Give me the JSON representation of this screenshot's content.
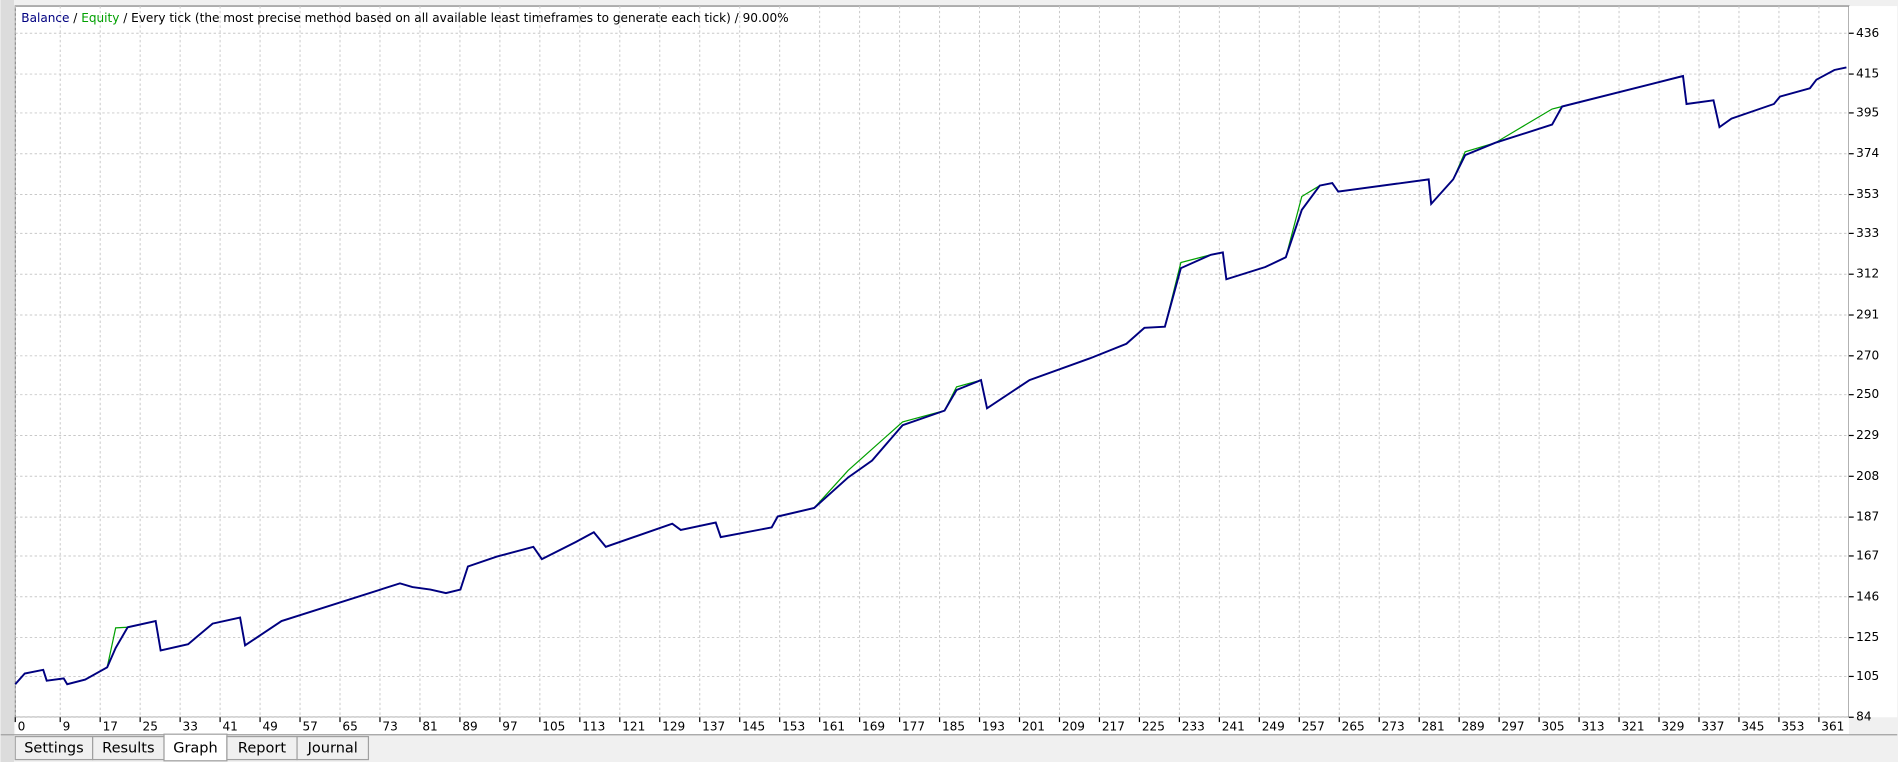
{
  "chart_data": {
    "type": "line",
    "separator": " / ",
    "subtitle": "Every tick (the most precise method based on all available least timeframes to generate each tick) / 90.00%",
    "x": [
      0,
      1.9,
      5.6,
      6.3,
      9.7,
      10.4,
      14,
      18.4,
      20.1,
      22.5,
      28.1,
      29.1,
      34.6,
      39.5,
      45,
      46,
      53.3,
      77,
      79.5,
      83.1,
      86.2,
      89.1,
      90.6,
      96.4,
      103.7,
      105.4,
      112.2,
      115.8,
      118.2,
      131.5,
      133.2,
      140.2,
      141.2,
      151.4,
      152.6,
      159.9,
      166.7,
      171.5,
      177.6,
      186,
      188.4,
      193.3,
      194.5,
      203,
      215.1,
      222.4,
      226,
      230.1,
      233.3,
      239.3,
      241.7,
      242.4,
      250.2,
      254.3,
      257.5,
      261.1,
      263.6,
      264.8,
      282.9,
      283.4,
      287.8,
      290.2,
      296.2,
      307.6,
      309.6,
      333.8,
      334.5,
      339.9,
      341.1,
      343.5,
      352,
      353.2,
      359.2,
      360.5,
      364.1,
      366.5
    ],
    "series": [
      {
        "name": "Equity",
        "color": "#00a000",
        "values": [
          101,
          106.5,
          108.4,
          102.8,
          104,
          101,
          103.4,
          109.7,
          130,
          130.3,
          133.5,
          118.4,
          121.6,
          132.2,
          135.3,
          121,
          133.5,
          152.9,
          151,
          149.7,
          147.9,
          149.7,
          161.6,
          166.7,
          171.7,
          165.4,
          174.2,
          179.2,
          171.7,
          183.6,
          180.4,
          184.2,
          176.7,
          181.7,
          187.3,
          191.7,
          211,
          222,
          236,
          241.8,
          254,
          257.5,
          243,
          257.5,
          268.7,
          276.2,
          284.4,
          285,
          318,
          322,
          323.2,
          309.4,
          315.7,
          320.7,
          352,
          357.6,
          358.9,
          354.5,
          360.8,
          348.2,
          360.8,
          375,
          379.6,
          397,
          398.3,
          414,
          399.6,
          401.5,
          387.7,
          392.1,
          399.6,
          403.4,
          407.7,
          412.1,
          417.1,
          418.4
        ]
      },
      {
        "name": "Balance",
        "color": "#000080",
        "values": [
          101,
          106.5,
          108.4,
          102.8,
          104,
          101,
          103.4,
          109.7,
          119.7,
          130.3,
          133.5,
          118.4,
          121.6,
          132.2,
          135.3,
          121,
          133.5,
          152.9,
          151,
          149.7,
          147.9,
          149.7,
          161.6,
          166.7,
          171.7,
          165.4,
          174.2,
          179.2,
          171.7,
          183.6,
          180.4,
          184.2,
          176.7,
          181.7,
          187.3,
          191.7,
          207.4,
          216.1,
          234.3,
          241.8,
          252.4,
          257.5,
          243,
          257.5,
          268.7,
          276.2,
          284.4,
          285,
          315.1,
          322,
          323.2,
          309.4,
          315.7,
          320.7,
          345.1,
          357.6,
          358.9,
          354.5,
          360.8,
          348.2,
          360.8,
          373.3,
          379.6,
          389,
          398.3,
          414,
          399.6,
          401.5,
          387.7,
          392.1,
          399.6,
          403.4,
          407.7,
          412.1,
          417.1,
          418.4
        ]
      }
    ],
    "xlim": [
      0,
      367
    ],
    "xticks": [
      0,
      9,
      17,
      25,
      33,
      41,
      49,
      57,
      65,
      73,
      81,
      89,
      97,
      105,
      113,
      121,
      129,
      137,
      145,
      153,
      161,
      169,
      177,
      185,
      193,
      201,
      209,
      217,
      225,
      233,
      241,
      249,
      257,
      265,
      273,
      281,
      289,
      297,
      305,
      313,
      321,
      329,
      337,
      345,
      353,
      361
    ],
    "ylim": [
      84,
      450
    ],
    "yticks": [
      84,
      105,
      125,
      146,
      167,
      187,
      208,
      229,
      250,
      270,
      291,
      312,
      333,
      353,
      374,
      395,
      415,
      436
    ],
    "grid": true
  },
  "tabs": [
    "Settings",
    "Results",
    "Graph",
    "Report",
    "Journal"
  ],
  "active_tab": 2
}
